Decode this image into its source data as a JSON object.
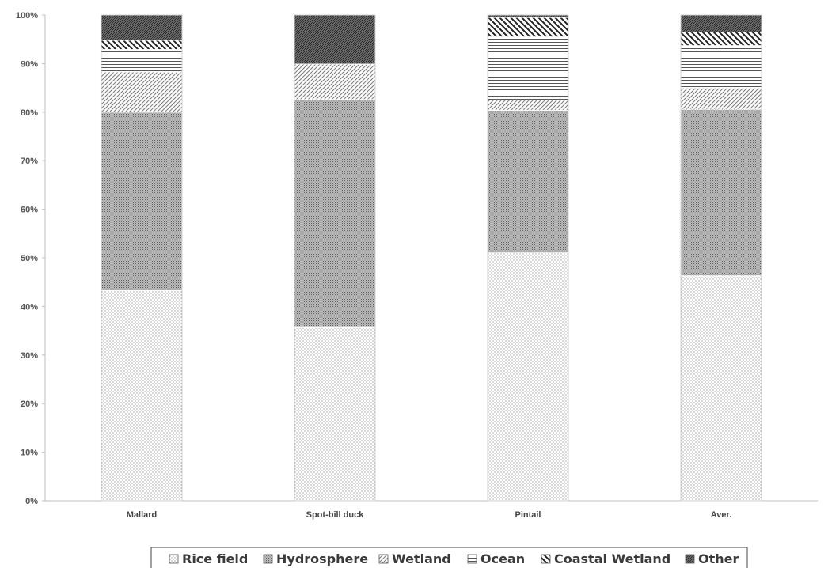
{
  "chart_data": {
    "type": "bar",
    "stacked": true,
    "percent": true,
    "title": "",
    "xlabel": "",
    "ylabel": "",
    "ylim": [
      0,
      100
    ],
    "yticks": [
      "0%",
      "10%",
      "20%",
      "30%",
      "40%",
      "50%",
      "60%",
      "70%",
      "80%",
      "90%",
      "100%"
    ],
    "categories": [
      "Mallard",
      "Spot-bill duck",
      "Pintail",
      "Aver."
    ],
    "series": [
      {
        "name": "Rice field",
        "pattern": "dots",
        "values": [
          43.3,
          35.8,
          51.0,
          46.3
        ]
      },
      {
        "name": "Hydrosphere",
        "pattern": "dense-crosshatch",
        "values": [
          36.7,
          46.8,
          29.4,
          34.3
        ]
      },
      {
        "name": "Wetland",
        "pattern": "diagonal-right",
        "values": [
          8.3,
          7.3,
          2.1,
          4.4
        ]
      },
      {
        "name": "Ocean",
        "pattern": "horizontal",
        "values": [
          4.6,
          0.0,
          13.0,
          8.7
        ]
      },
      {
        "name": "Coastal Wetland",
        "pattern": "diagonal-left",
        "values": [
          1.9,
          0.0,
          4.0,
          2.8
        ]
      },
      {
        "name": "Other",
        "pattern": "dense-diagonal",
        "values": [
          5.2,
          10.1,
          0.5,
          3.5
        ]
      }
    ],
    "grid": false,
    "legend_position": "bottom-center",
    "colors": {
      "bar_fill": "#ffffff",
      "pattern_ink": "#444444",
      "axis": "#bfbfbf",
      "legend_border": "#444444"
    }
  }
}
